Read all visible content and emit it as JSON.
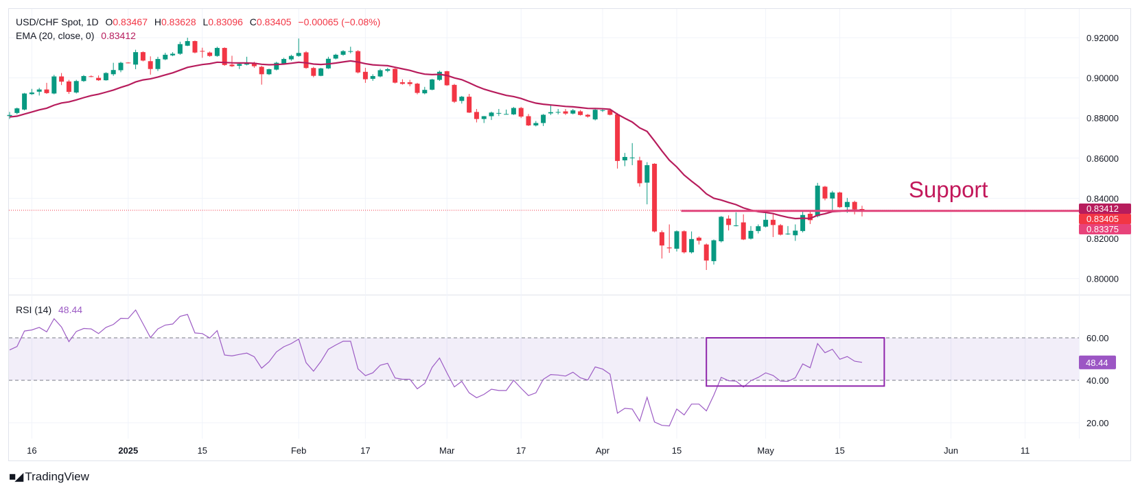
{
  "header": {
    "symbol": "USD/CHF Spot, 1D",
    "o_label": "O",
    "o_value": "0.83467",
    "h_label": "H",
    "h_value": "0.83628",
    "l_label": "L",
    "l_value": "0.83096",
    "c_label": "C",
    "c_value": "0.83405",
    "change": "−0.00065 (−0.08%)",
    "ema_label": "EMA (20, close, 0)",
    "ema_value": "0.83412",
    "rsi_label": "RSI (14)",
    "rsi_value": "48.44"
  },
  "branding": {
    "logo_text": "TradingView",
    "logo_mark": "17"
  },
  "colors": {
    "up": "#089981",
    "down": "#f23645",
    "ema": "#b71c5c",
    "support": "#e0457b",
    "rsi": "#9c5bc4",
    "rsi_box": "#8e24aa"
  },
  "chart_data": [
    {
      "type": "candlestick",
      "title": "USD/CHF Spot, 1D",
      "y_ticks": [
        "0.92000",
        "0.90000",
        "0.88000",
        "0.86000",
        "0.84000",
        "0.82000",
        "0.80000"
      ],
      "y_tick_values": [
        0.92,
        0.9,
        0.88,
        0.86,
        0.84,
        0.82,
        0.8
      ],
      "ylim": [
        0.7935,
        0.9255
      ],
      "x_ticks": [
        {
          "label": "16",
          "bar": 3
        },
        {
          "label": "2025",
          "bar": 16,
          "bold": true
        },
        {
          "label": "15",
          "bar": 26
        },
        {
          "label": "Feb",
          "bar": 39
        },
        {
          "label": "17",
          "bar": 48
        },
        {
          "label": "Mar",
          "bar": 59
        },
        {
          "label": "17",
          "bar": 69
        },
        {
          "label": "Apr",
          "bar": 80
        },
        {
          "label": "15",
          "bar": 90
        },
        {
          "label": "May",
          "bar": 102
        },
        {
          "label": "15",
          "bar": 112
        },
        {
          "label": "Jun",
          "bar": 127
        },
        {
          "label": "11",
          "bar": 137
        }
      ],
      "ohlc": [
        [
          0.881,
          0.883,
          0.8795,
          0.8815
        ],
        [
          0.8825,
          0.8852,
          0.8818,
          0.8848
        ],
        [
          0.8842,
          0.8925,
          0.8838,
          0.8922
        ],
        [
          0.8919,
          0.8945,
          0.8915,
          0.8927
        ],
        [
          0.8931,
          0.895,
          0.8912,
          0.8942
        ],
        [
          0.8942,
          0.8975,
          0.892,
          0.8924
        ],
        [
          0.8922,
          0.9015,
          0.8918,
          0.9007
        ],
        [
          0.9007,
          0.9024,
          0.8964,
          0.8981
        ],
        [
          0.8982,
          0.899,
          0.892,
          0.893
        ],
        [
          0.8927,
          0.899,
          0.8922,
          0.8984
        ],
        [
          0.8984,
          0.9014,
          0.898,
          0.9009
        ],
        [
          0.9008,
          0.9012,
          0.9003,
          0.9006
        ],
        [
          0.9,
          0.9012,
          0.8985,
          0.8988
        ],
        [
          0.8988,
          0.9028,
          0.8986,
          0.9024
        ],
        [
          0.9018,
          0.9075,
          0.901,
          0.9039
        ],
        [
          0.9038,
          0.908,
          0.9028,
          0.9075
        ],
        [
          0.9076,
          0.9078,
          0.9072,
          0.9075
        ],
        [
          0.9066,
          0.914,
          0.9043,
          0.9128
        ],
        [
          0.9128,
          0.9132,
          0.9082,
          0.9086
        ],
        [
          0.9083,
          0.9107,
          0.9016,
          0.9044
        ],
        [
          0.9044,
          0.9105,
          0.9034,
          0.9094
        ],
        [
          0.9092,
          0.9125,
          0.9088,
          0.9115
        ],
        [
          0.9112,
          0.9128,
          0.9108,
          0.912
        ],
        [
          0.912,
          0.918,
          0.9115,
          0.9168
        ],
        [
          0.916,
          0.92,
          0.9158,
          0.9183
        ],
        [
          0.9183,
          0.9186,
          0.9122,
          0.9126
        ],
        [
          0.9134,
          0.915,
          0.91,
          0.9132
        ],
        [
          0.9126,
          0.9131,
          0.9105,
          0.9109
        ],
        [
          0.9109,
          0.9155,
          0.9105,
          0.9149
        ],
        [
          0.9149,
          0.9152,
          0.906,
          0.9064
        ],
        [
          0.9066,
          0.911,
          0.9054,
          0.9058
        ],
        [
          0.906,
          0.9072,
          0.9044,
          0.9069
        ],
        [
          0.9066,
          0.9105,
          0.9062,
          0.9075
        ],
        [
          0.9075,
          0.908,
          0.905,
          0.9058
        ],
        [
          0.9055,
          0.906,
          0.8966,
          0.9018
        ],
        [
          0.9018,
          0.9046,
          0.9014,
          0.9043
        ],
        [
          0.9041,
          0.908,
          0.9037,
          0.9075
        ],
        [
          0.9072,
          0.91,
          0.9066,
          0.9094
        ],
        [
          0.9092,
          0.9115,
          0.9085,
          0.9109
        ],
        [
          0.9109,
          0.9196,
          0.9105,
          0.9124
        ],
        [
          0.9127,
          0.9133,
          0.9045,
          0.9049
        ],
        [
          0.9049,
          0.9055,
          0.9003,
          0.901
        ],
        [
          0.901,
          0.905,
          0.9008,
          0.9047
        ],
        [
          0.9047,
          0.9105,
          0.9044,
          0.9095
        ],
        [
          0.9096,
          0.912,
          0.9092,
          0.9115
        ],
        [
          0.9115,
          0.9138,
          0.911,
          0.9133
        ],
        [
          0.9133,
          0.9155,
          0.9122,
          0.9133
        ],
        [
          0.9133,
          0.9138,
          0.9022,
          0.9027
        ],
        [
          0.903,
          0.905,
          0.8975,
          0.8993
        ],
        [
          0.8995,
          0.9018,
          0.8985,
          0.9009
        ],
        [
          0.9007,
          0.9045,
          0.9003,
          0.9038
        ],
        [
          0.9035,
          0.905,
          0.9028,
          0.9043
        ],
        [
          0.9045,
          0.9048,
          0.8972,
          0.8976
        ],
        [
          0.8978,
          0.8993,
          0.8966,
          0.897
        ],
        [
          0.8978,
          0.899,
          0.8958,
          0.8969
        ],
        [
          0.8971,
          0.8975,
          0.8918,
          0.8925
        ],
        [
          0.8923,
          0.8955,
          0.8918,
          0.894
        ],
        [
          0.8941,
          0.8995,
          0.8938,
          0.8992
        ],
        [
          0.899,
          0.9036,
          0.8985,
          0.903
        ],
        [
          0.9033,
          0.9035,
          0.896,
          0.8963
        ],
        [
          0.8965,
          0.897,
          0.8875,
          0.8881
        ],
        [
          0.8885,
          0.891,
          0.8872,
          0.8906
        ],
        [
          0.8906,
          0.892,
          0.8825,
          0.8827
        ],
        [
          0.883,
          0.8845,
          0.8778,
          0.8795
        ],
        [
          0.8795,
          0.881,
          0.8775,
          0.8809
        ],
        [
          0.8809,
          0.8832,
          0.879,
          0.8827
        ],
        [
          0.8825,
          0.8845,
          0.881,
          0.8825
        ],
        [
          0.882,
          0.8842,
          0.8818,
          0.882
        ],
        [
          0.8818,
          0.8855,
          0.8815,
          0.885
        ],
        [
          0.885,
          0.8855,
          0.88,
          0.8807
        ],
        [
          0.8809,
          0.882,
          0.876,
          0.8763
        ],
        [
          0.8763,
          0.8785,
          0.8758,
          0.8775
        ],
        [
          0.8775,
          0.882,
          0.876,
          0.8816
        ],
        [
          0.8823,
          0.8862,
          0.8815,
          0.8829
        ],
        [
          0.883,
          0.8845,
          0.8818,
          0.883
        ],
        [
          0.8833,
          0.8845,
          0.8815,
          0.8822
        ],
        [
          0.8822,
          0.8845,
          0.8818,
          0.8838
        ],
        [
          0.8833,
          0.884,
          0.8812,
          0.8815
        ],
        [
          0.8816,
          0.882,
          0.8802,
          0.8807
        ],
        [
          0.8793,
          0.885,
          0.8788,
          0.8841
        ],
        [
          0.8838,
          0.8845,
          0.883,
          0.8839
        ],
        [
          0.8839,
          0.8842,
          0.8813,
          0.8816
        ],
        [
          0.8818,
          0.8825,
          0.8548,
          0.8586
        ],
        [
          0.8589,
          0.8626,
          0.856,
          0.8606
        ],
        [
          0.8603,
          0.8675,
          0.8565,
          0.8603
        ],
        [
          0.8589,
          0.8607,
          0.8458,
          0.8475
        ],
        [
          0.8478,
          0.858,
          0.837,
          0.8565
        ],
        [
          0.8572,
          0.8575,
          0.823,
          0.8235
        ],
        [
          0.8231,
          0.824,
          0.81,
          0.8165
        ],
        [
          0.8155,
          0.827,
          0.8128,
          0.8151
        ],
        [
          0.8149,
          0.824,
          0.8135,
          0.8236
        ],
        [
          0.8236,
          0.824,
          0.8125,
          0.8131
        ],
        [
          0.8131,
          0.8235,
          0.8125,
          0.8197
        ],
        [
          0.8204,
          0.821,
          0.817,
          0.8189
        ],
        [
          0.817,
          0.8175,
          0.8043,
          0.809
        ],
        [
          0.8087,
          0.8195,
          0.807,
          0.8191
        ],
        [
          0.8186,
          0.8312,
          0.818,
          0.8308
        ],
        [
          0.8299,
          0.8315,
          0.824,
          0.8267
        ],
        [
          0.8265,
          0.833,
          0.826,
          0.8265
        ],
        [
          0.828,
          0.832,
          0.8192,
          0.8195
        ],
        [
          0.8199,
          0.8262,
          0.8195,
          0.8238
        ],
        [
          0.8237,
          0.827,
          0.8225,
          0.8261
        ],
        [
          0.8259,
          0.8335,
          0.8255,
          0.8293
        ],
        [
          0.8293,
          0.832,
          0.8207,
          0.8267
        ],
        [
          0.8266,
          0.8272,
          0.8215,
          0.8219
        ],
        [
          0.8224,
          0.8262,
          0.8218,
          0.8224
        ],
        [
          0.8216,
          0.827,
          0.8188,
          0.8239
        ],
        [
          0.8237,
          0.8333,
          0.823,
          0.8317
        ],
        [
          0.8323,
          0.8336,
          0.8272,
          0.8291
        ],
        [
          0.8311,
          0.8477,
          0.8305,
          0.8463
        ],
        [
          0.8458,
          0.8462,
          0.839,
          0.8399
        ],
        [
          0.8399,
          0.8437,
          0.8337,
          0.8429
        ],
        [
          0.8429,
          0.8433,
          0.8352,
          0.8356
        ],
        [
          0.8356,
          0.8402,
          0.8328,
          0.8382
        ],
        [
          0.8382,
          0.8388,
          0.832,
          0.8345
        ],
        [
          0.83467,
          0.83628,
          0.83096,
          0.83405
        ]
      ],
      "ema": {
        "period": 20,
        "seed": 0.8805,
        "last_value": "0.83412"
      },
      "support": {
        "label": "Support",
        "price": 0.83375,
        "price_label": "0.83375",
        "from_bar": 90.6
      },
      "price_labels": [
        {
          "text": "0.83412",
          "color": "#b71c5c"
        },
        {
          "text": "0.83405",
          "color": "#f23645"
        },
        {
          "text": "0.83375",
          "color": "#e8437a"
        }
      ],
      "current_price": 0.83405
    },
    {
      "type": "line",
      "title": "RSI (14)",
      "ylim": [
        12,
        80
      ],
      "y_ticks": [
        "60.00",
        "40.00",
        "20.00"
      ],
      "y_tick_values": [
        60,
        40,
        20
      ],
      "band": [
        40,
        60
      ],
      "values": [
        54.3,
        55.9,
        63.2,
        63.7,
        64.9,
        62.8,
        69.0,
        65.1,
        58.2,
        63.0,
        64.4,
        64.2,
        62.0,
        64.9,
        66.3,
        69.2,
        69.1,
        73.1,
        66.6,
        60.1,
        64.2,
        66.0,
        66.5,
        70.1,
        71.0,
        62.3,
        62.0,
        59.9,
        63.4,
        51.9,
        51.5,
        52.2,
        52.8,
        51.1,
        45.7,
        48.7,
        53.4,
        55.8,
        57.3,
        59.4,
        48.3,
        44.3,
        48.9,
        54.6,
        56.6,
        58.4,
        58.4,
        45.4,
        42.2,
        43.5,
        47.1,
        48.0,
        41.1,
        40.5,
        40.5,
        36.0,
        38.5,
        46.1,
        50.5,
        43.5,
        36.9,
        39.5,
        34.1,
        31.8,
        33.4,
        35.8,
        35.2,
        35.2,
        40.0,
        36.3,
        32.8,
        34.1,
        40.5,
        42.7,
        42.5,
        42.0,
        43.8,
        41.2,
        40.1,
        46.3,
        45.3,
        42.9,
        24.5,
        26.8,
        26.5,
        20.8,
        32.0,
        20.4,
        18.8,
        18.5,
        26.5,
        23.7,
        28.8,
        28.8,
        25.6,
        33.0,
        41.4,
        39.8,
        39.6,
        36.8,
        39.8,
        41.4,
        43.5,
        42.3,
        39.6,
        39.5,
        41.2,
        47.7,
        45.9,
        57.3,
        53.0,
        54.6,
        49.9,
        51.2,
        49.0,
        48.44
      ],
      "last_label": "48.44",
      "highlight_box": {
        "from_bar": 94,
        "to_bar": 118,
        "top": 60,
        "bottom": 37.3
      }
    }
  ]
}
